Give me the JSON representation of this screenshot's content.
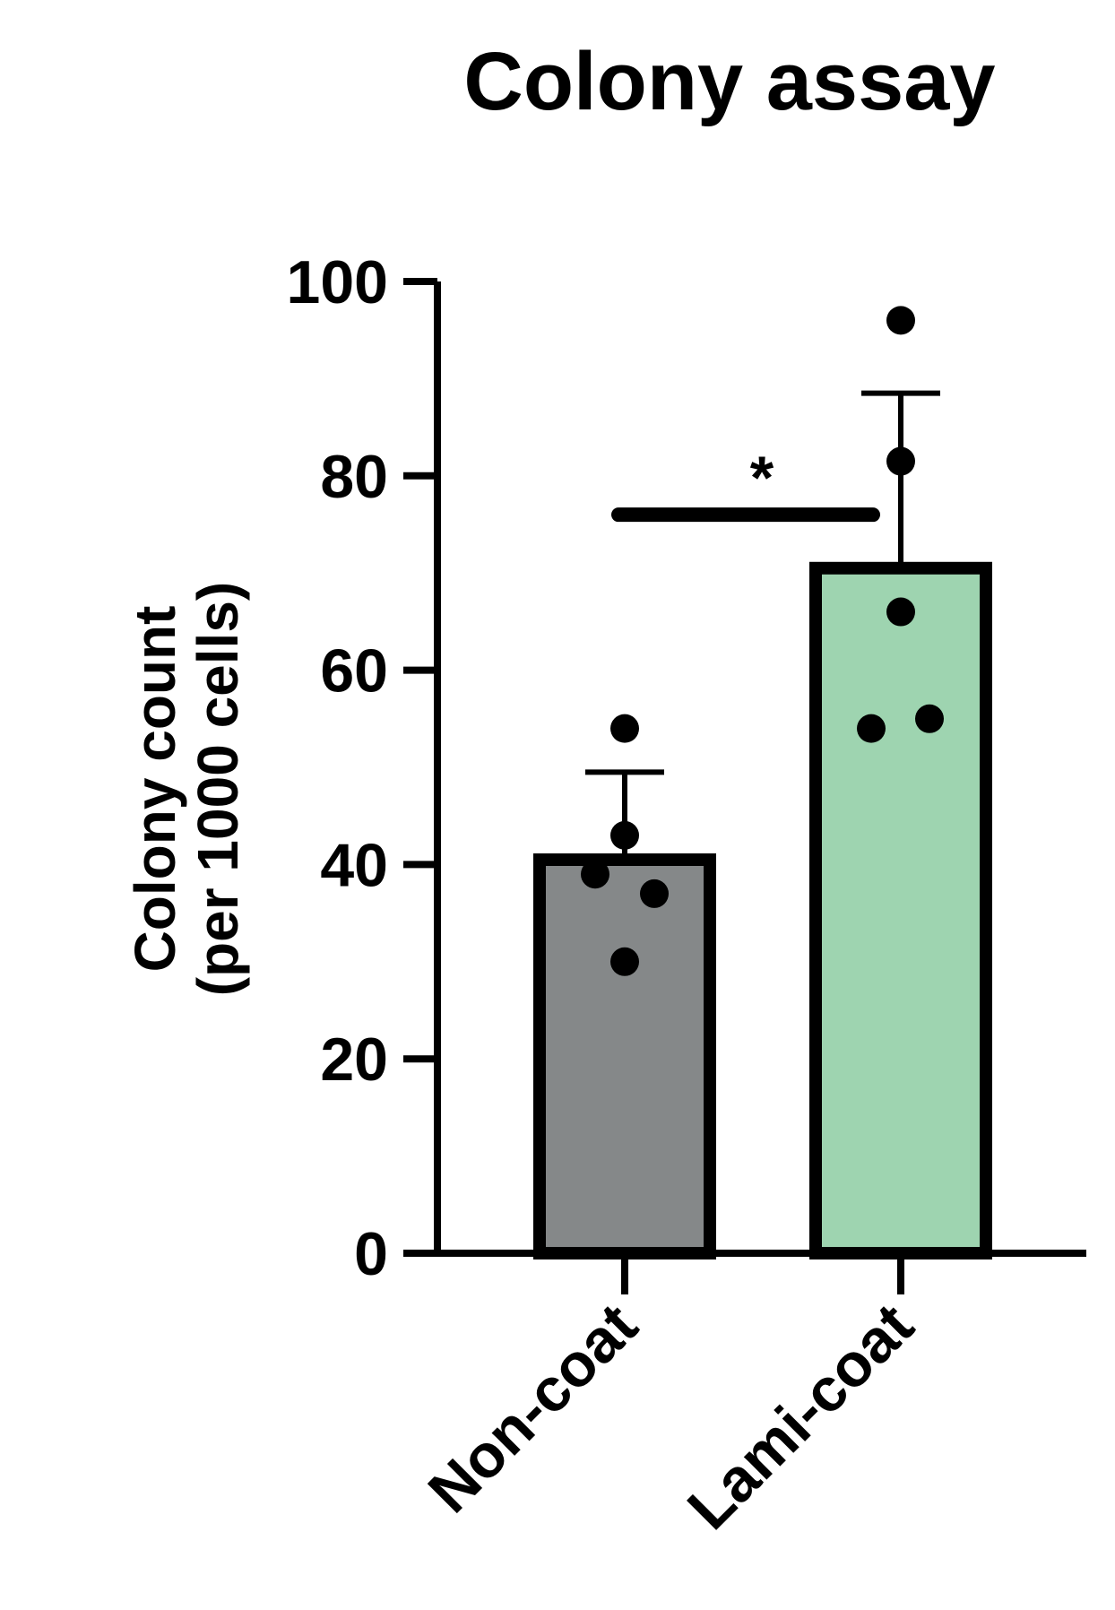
{
  "chart_data": {
    "type": "bar",
    "title": "Colony assay",
    "ylabel_lines": [
      "Colony count",
      "(per 1000 cells)"
    ],
    "xlabel": "",
    "ylim": [
      0,
      100
    ],
    "yticks": [
      0,
      20,
      40,
      60,
      80,
      100
    ],
    "categories": [
      "Non-coat",
      "Lami-coat"
    ],
    "values": [
      40.5,
      70.5
    ],
    "error_upper": [
      49.5,
      88.5
    ],
    "points": [
      [
        54,
        43,
        39,
        37,
        30
      ],
      [
        96,
        81.5,
        66,
        55,
        54
      ]
    ],
    "colors": [
      "#858889",
      "#9ed4b0"
    ],
    "significance": {
      "label": "*",
      "between": [
        0,
        1
      ],
      "y": 76
    },
    "grid": false,
    "legend": "none"
  }
}
